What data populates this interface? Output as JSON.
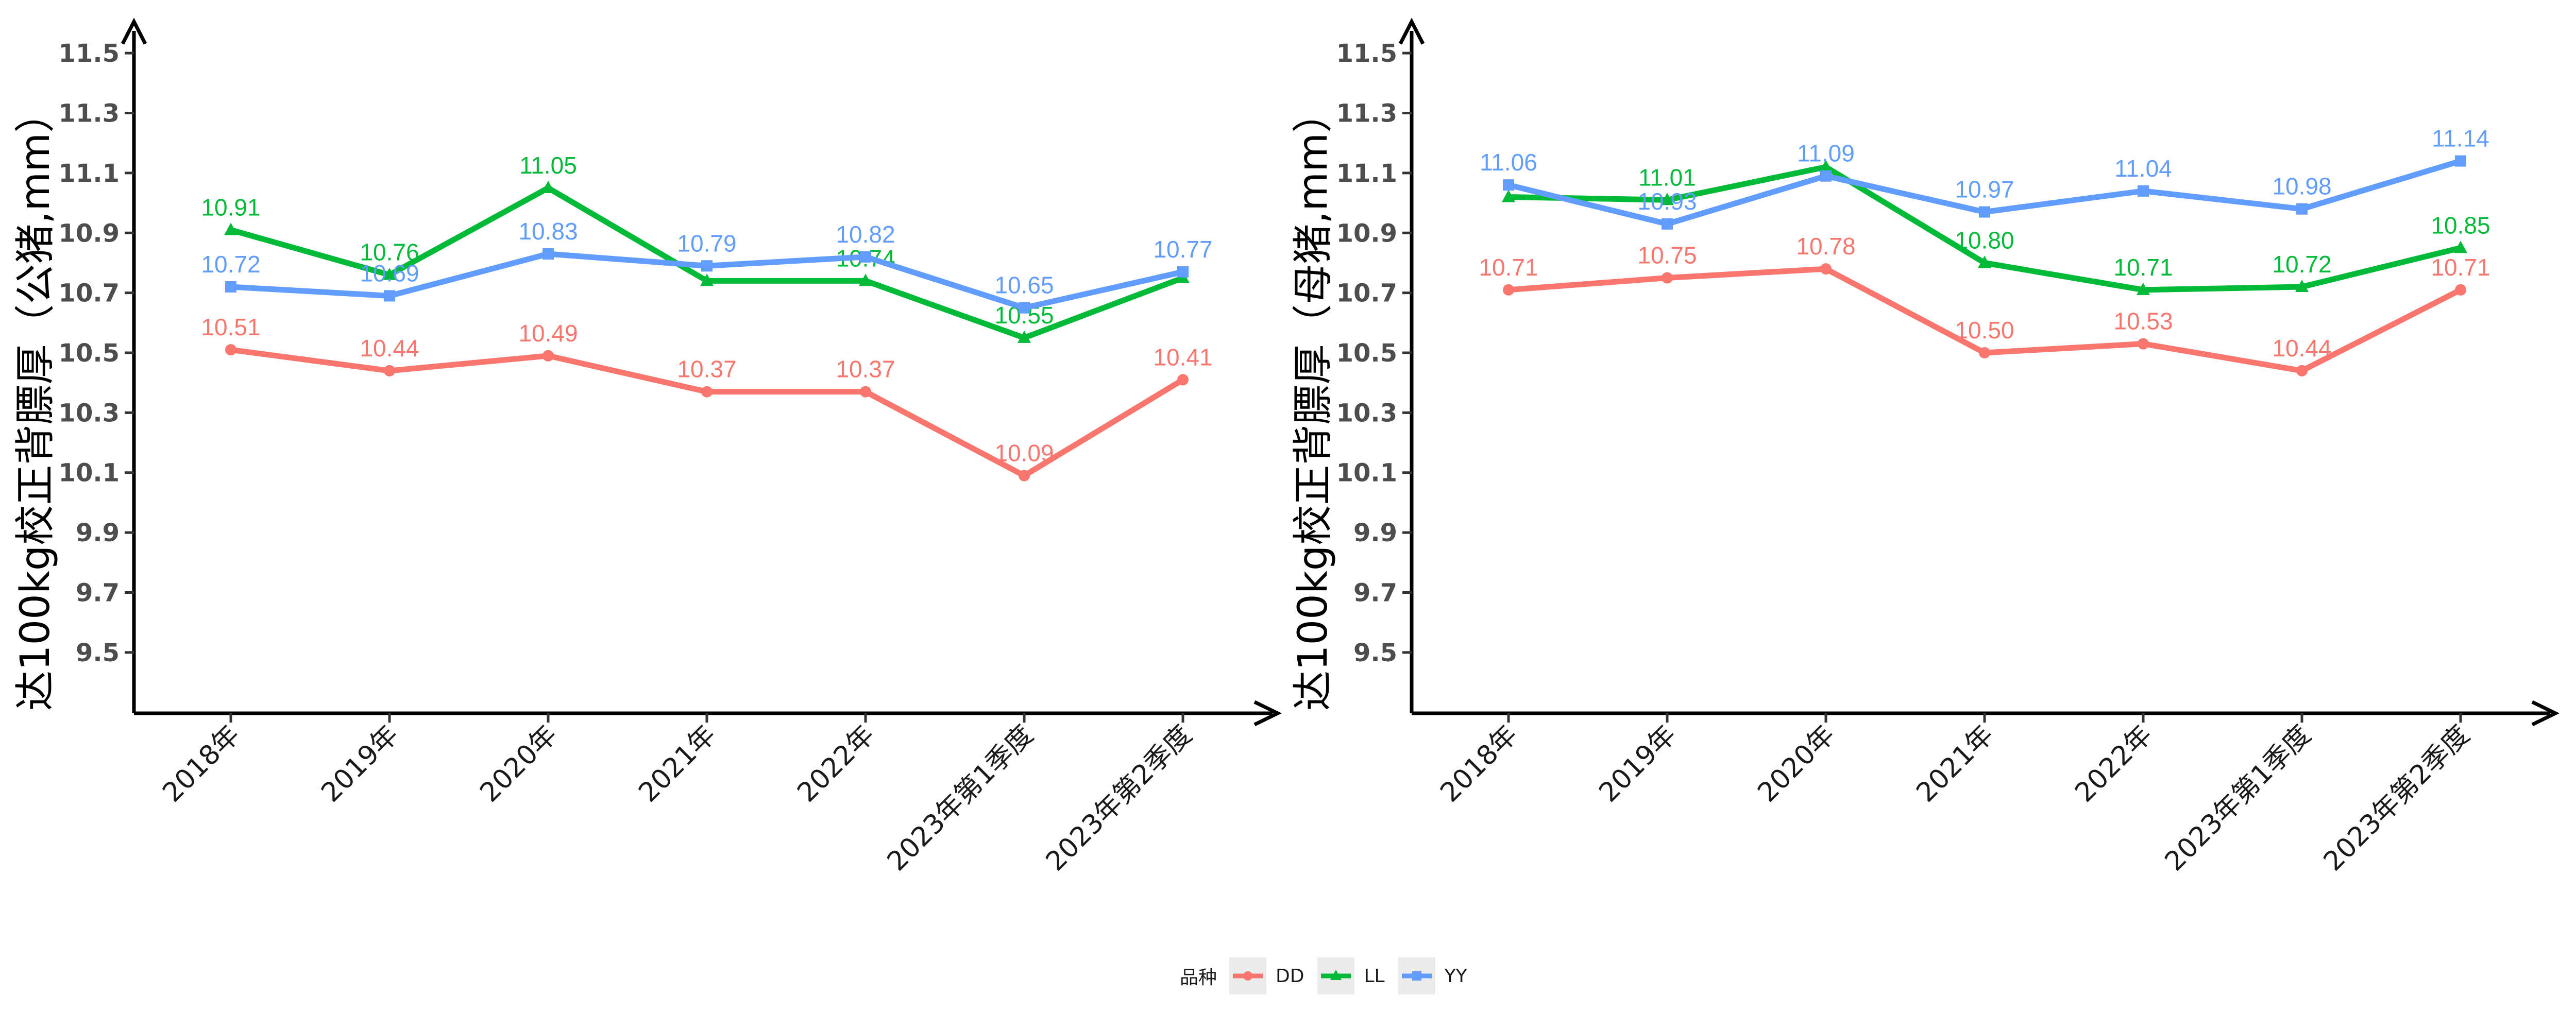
{
  "chart_data": [
    {
      "type": "line",
      "ylabel": "达100kg校正背膘厚（公猪,mm）",
      "xlabel": "",
      "categories": [
        "2018年",
        "2019年",
        "2020年",
        "2021年",
        "2022年",
        "2023年第1季度",
        "2023年第2季度"
      ],
      "ylim": [
        9.4,
        11.6
      ],
      "yticks": [
        "9.5",
        "9.7",
        "9.9",
        "10.1",
        "10.3",
        "10.5",
        "10.7",
        "10.9",
        "11.1",
        "11.3",
        "11.5"
      ],
      "series": [
        {
          "name": "DD",
          "color": "#F8766D",
          "marker": "circle",
          "values": [
            10.51,
            10.44,
            10.49,
            10.37,
            10.37,
            10.09,
            10.41
          ],
          "labels": [
            "10.51",
            "10.44",
            "10.49",
            "10.37",
            "10.37",
            "10.09",
            "10.41"
          ]
        },
        {
          "name": "LL",
          "color": "#00BA38",
          "marker": "triangle",
          "values": [
            10.91,
            10.76,
            11.05,
            10.74,
            10.74,
            10.55,
            10.75
          ],
          "labels": [
            "10.91",
            "10.76",
            "11.05",
            "",
            "10.74",
            "10.55",
            ""
          ]
        },
        {
          "name": "YY",
          "color": "#619CFF",
          "marker": "square",
          "values": [
            10.72,
            10.69,
            10.83,
            10.79,
            10.82,
            10.65,
            10.77
          ],
          "labels": [
            "10.72",
            "10.69",
            "10.83",
            "10.79",
            "10.82",
            "10.65",
            "10.77"
          ]
        }
      ],
      "grid": false
    },
    {
      "type": "line",
      "ylabel": "达100kg校正背膘厚（母猪,mm）",
      "xlabel": "",
      "categories": [
        "2018年",
        "2019年",
        "2020年",
        "2021年",
        "2022年",
        "2023年第1季度",
        "2023年第2季度"
      ],
      "ylim": [
        9.4,
        11.6
      ],
      "yticks": [
        "9.5",
        "9.7",
        "9.9",
        "10.1",
        "10.3",
        "10.5",
        "10.7",
        "10.9",
        "11.1",
        "11.3",
        "11.5"
      ],
      "series": [
        {
          "name": "DD",
          "color": "#F8766D",
          "marker": "circle",
          "values": [
            10.71,
            10.75,
            10.78,
            10.5,
            10.53,
            10.44,
            10.71
          ],
          "labels": [
            "10.71",
            "10.75",
            "10.78",
            "10.50",
            "10.53",
            "10.44",
            "10.71"
          ]
        },
        {
          "name": "LL",
          "color": "#00BA38",
          "marker": "triangle",
          "values": [
            11.02,
            11.01,
            11.12,
            10.8,
            10.71,
            10.72,
            10.85
          ],
          "labels": [
            "",
            "11.01",
            "",
            "10.80",
            "10.71",
            "10.72",
            "10.85"
          ]
        },
        {
          "name": "YY",
          "color": "#619CFF",
          "marker": "square",
          "values": [
            11.06,
            10.93,
            11.09,
            10.97,
            11.04,
            10.98,
            11.14
          ],
          "labels": [
            "11.06",
            "10.93",
            "11.09",
            "10.97",
            "11.04",
            "10.98",
            "11.14"
          ]
        }
      ],
      "grid": false
    }
  ],
  "legend": {
    "title": "品种",
    "position": "bottom",
    "items": [
      {
        "name": "DD",
        "color": "#F8766D",
        "marker": "circle"
      },
      {
        "name": "LL",
        "color": "#00BA38",
        "marker": "triangle"
      },
      {
        "name": "YY",
        "color": "#619CFF",
        "marker": "square"
      }
    ]
  }
}
